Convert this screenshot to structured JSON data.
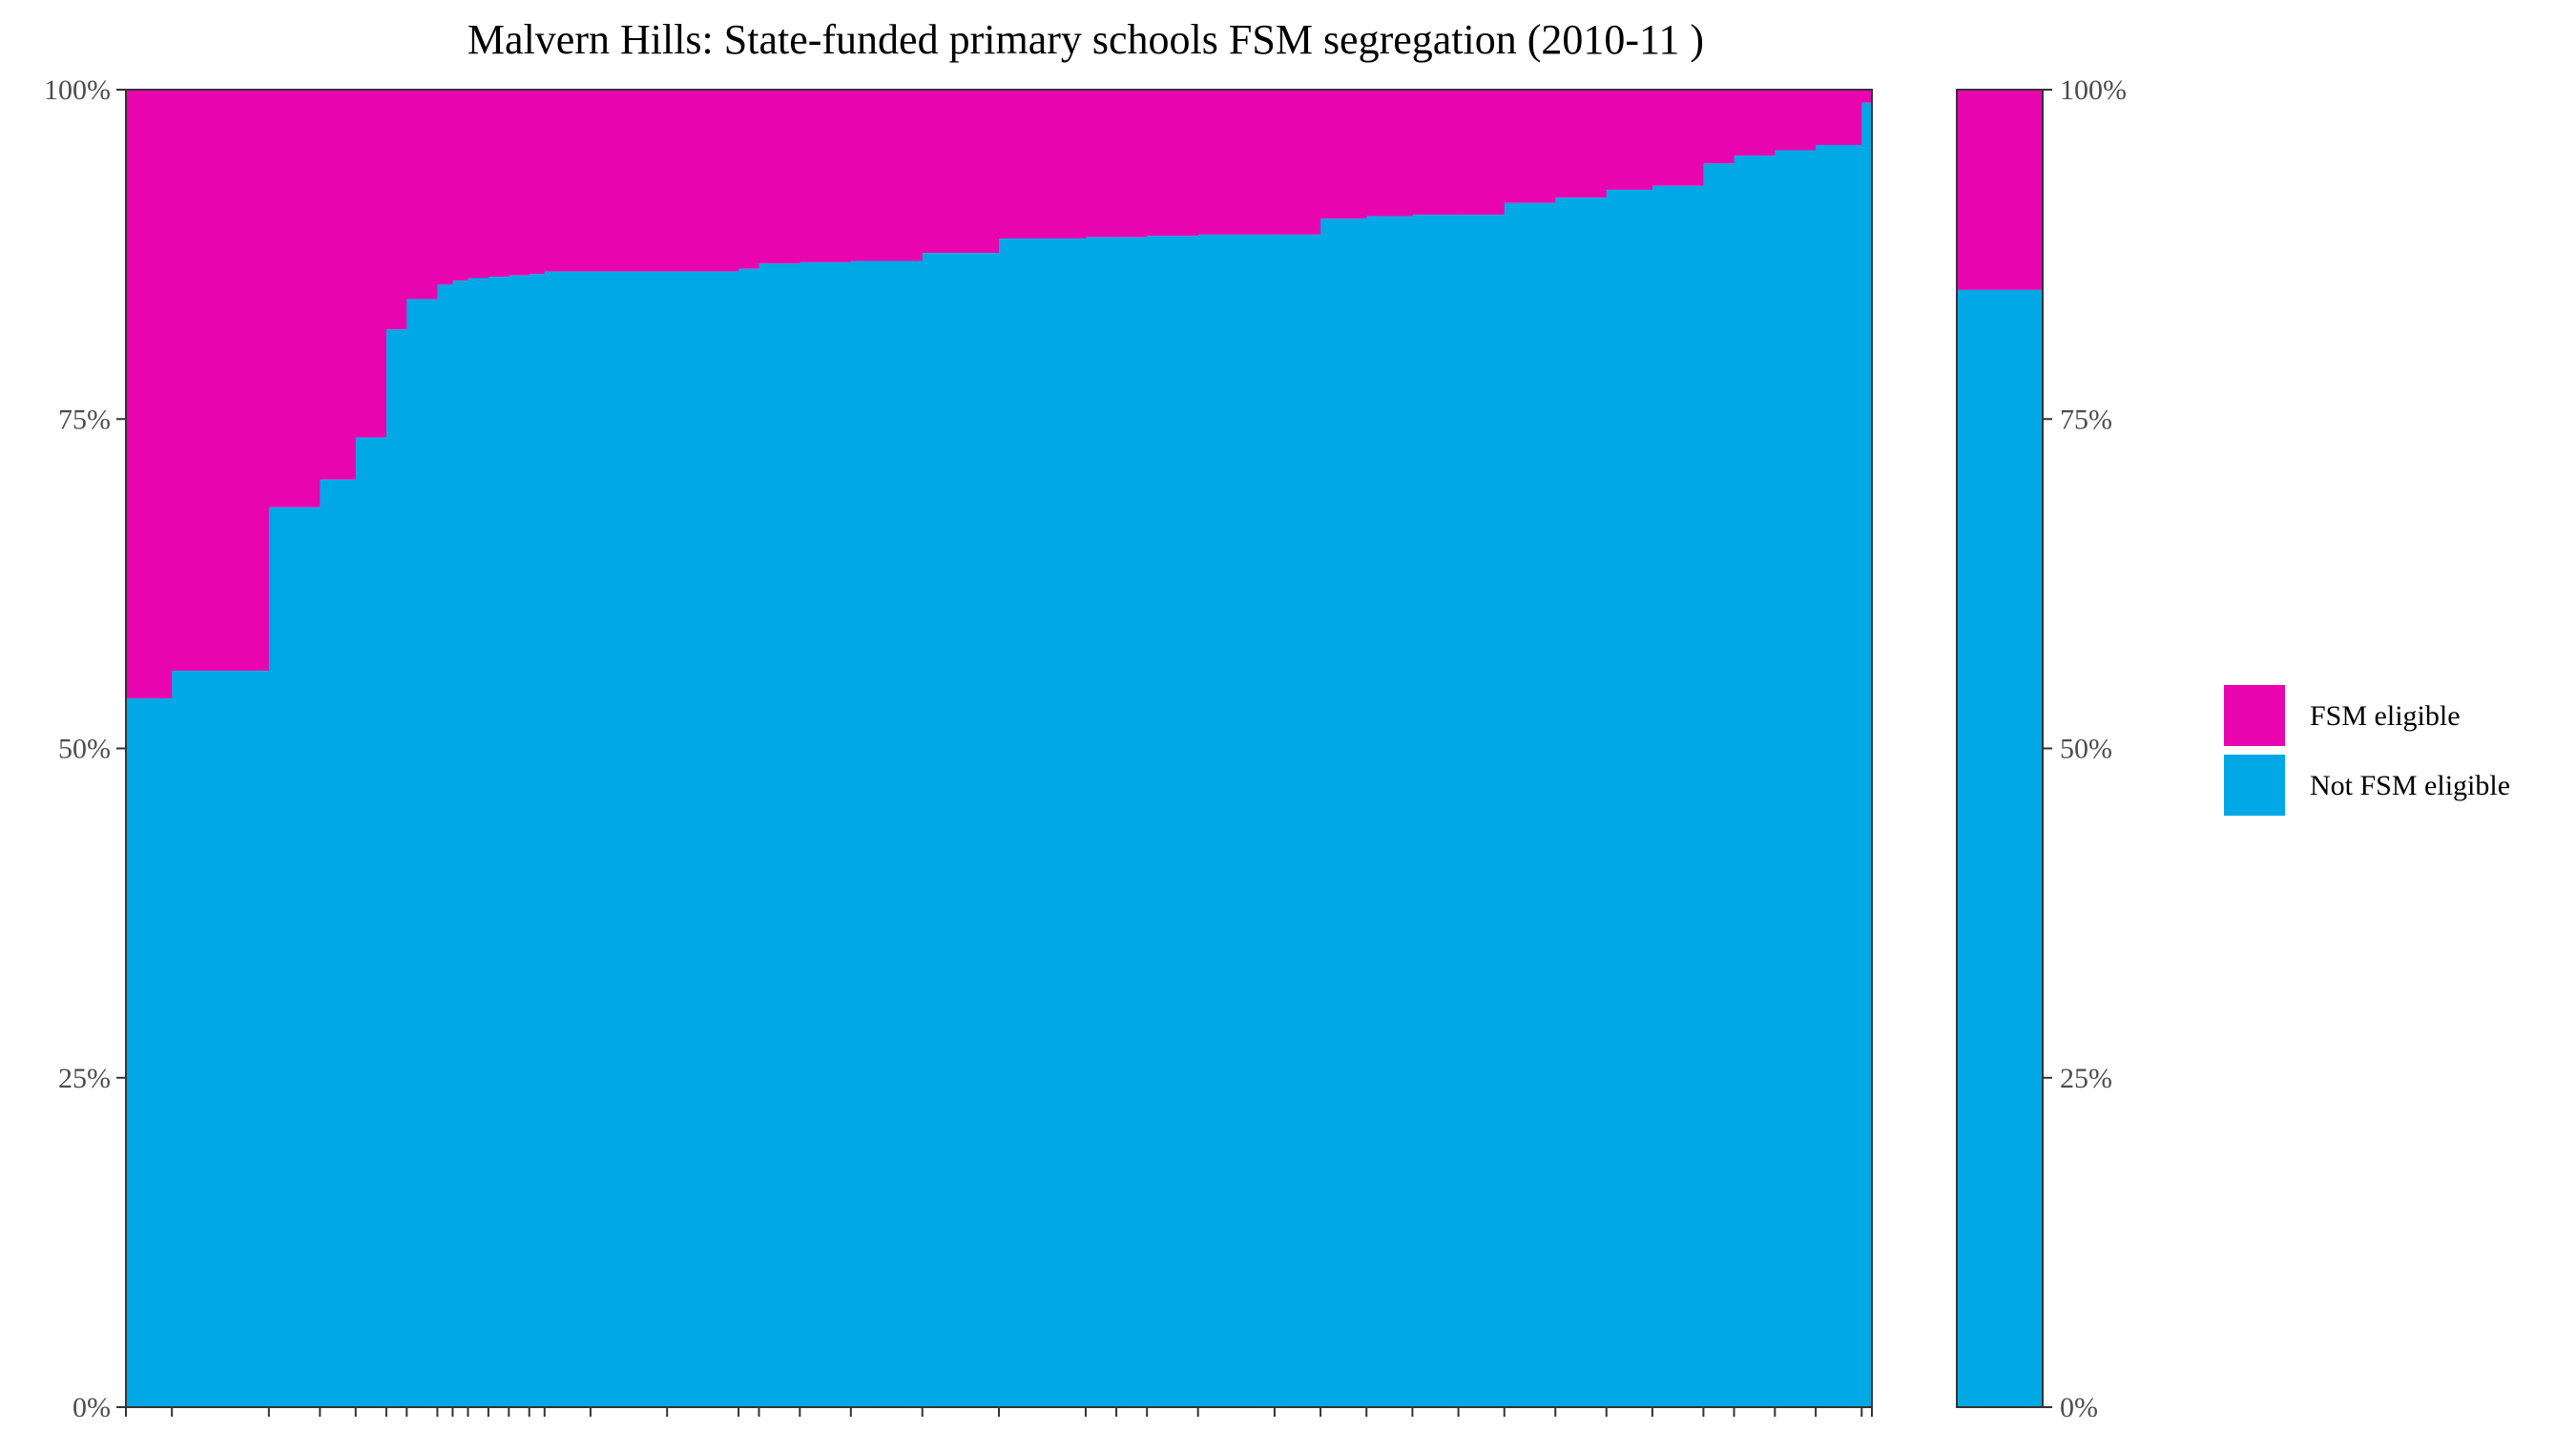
{
  "chart_data": {
    "type": "bar",
    "title": "Malvern Hills: State-funded primary schools FSM segregation (2010-11 )",
    "xlabel": "",
    "ylabel": "",
    "ylim": [
      0,
      100
    ],
    "y_ticks": [
      "0%",
      "25%",
      "50%",
      "75%",
      "100%"
    ],
    "colors": {
      "FSM eligible": "#e805b0",
      "Not FSM eligible": "#00a8e6"
    },
    "legend": [
      {
        "label": "FSM eligible",
        "color": "#e805b0"
      },
      {
        "label": "Not FSM eligible",
        "color": "#00a8e6"
      }
    ],
    "legend_position": "right",
    "series": [
      {
        "name": "Not FSM eligible",
        "note": "share of pupils (%) per school; FSM eligible = remainder to 100%"
      }
    ],
    "schools": {
      "relative_widths": [
        18,
        38,
        20,
        14,
        12,
        8,
        12,
        6,
        6,
        8,
        8,
        8,
        6,
        18,
        30,
        28,
        8,
        16,
        20,
        28,
        30,
        34,
        12,
        12,
        20,
        30,
        18,
        18,
        18,
        18,
        18,
        20,
        20,
        18,
        20,
        12,
        16,
        16,
        18,
        4
      ],
      "not_fsm_pct": [
        53.8,
        55.9,
        68.3,
        70.4,
        73.6,
        81.8,
        84.1,
        85.2,
        85.5,
        85.7,
        85.8,
        85.9,
        86.0,
        86.2,
        86.2,
        86.2,
        86.4,
        86.8,
        86.9,
        87.0,
        87.6,
        88.7,
        88.8,
        88.8,
        88.9,
        89.0,
        89.0,
        90.2,
        90.4,
        90.5,
        90.5,
        91.4,
        91.8,
        92.4,
        92.7,
        94.4,
        95.0,
        95.4,
        95.8,
        99.0
      ]
    },
    "overall": {
      "not_fsm_pct": 84.8
    }
  }
}
